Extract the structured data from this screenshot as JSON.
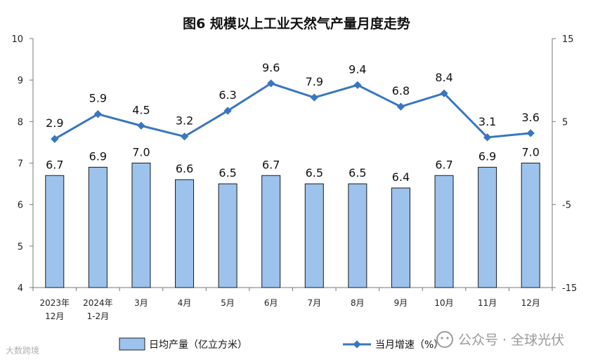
{
  "chart_data": {
    "type": "bar",
    "title": "图6  规模以上工业天然气产量月度走势",
    "categories": [
      [
        "2023年",
        "12月"
      ],
      [
        "2024年",
        "1-2月"
      ],
      [
        "3月"
      ],
      [
        "4月"
      ],
      [
        "5月"
      ],
      [
        "6月"
      ],
      [
        "7月"
      ],
      [
        "8月"
      ],
      [
        "9月"
      ],
      [
        "10月"
      ],
      [
        "11月"
      ],
      [
        "12月"
      ]
    ],
    "series": [
      {
        "name": "日均产量（亿立方米）",
        "type": "bar",
        "axis": "left",
        "values": [
          6.7,
          6.9,
          7.0,
          6.6,
          6.5,
          6.7,
          6.5,
          6.5,
          6.4,
          6.7,
          6.9,
          7.0
        ],
        "labels": [
          "6.7",
          "6.9",
          "7.0",
          "6.6",
          "6.5",
          "6.7",
          "6.5",
          "6.5",
          "6.4",
          "6.7",
          "6.9",
          "7.0"
        ],
        "color": "#9dc3ec"
      },
      {
        "name": "当月增速（%）",
        "type": "line",
        "axis": "right",
        "values": [
          2.9,
          5.9,
          4.5,
          3.2,
          6.3,
          9.6,
          7.9,
          9.4,
          6.8,
          8.4,
          3.1,
          3.6
        ],
        "labels": [
          "2.9",
          "5.9",
          "4.5",
          "3.2",
          "6.3",
          "9.6",
          "7.9",
          "9.4",
          "6.8",
          "8.4",
          "3.1",
          "3.6"
        ],
        "color": "#3a76bf"
      }
    ],
    "y_left": {
      "lim": [
        4,
        10
      ],
      "ticks": [
        "4",
        "5",
        "6",
        "7",
        "8",
        "9",
        "10"
      ]
    },
    "y_right": {
      "lim": [
        -15,
        15
      ],
      "ticks": [
        "-15",
        "-5",
        "5",
        "15"
      ]
    },
    "grid": false,
    "legend": "bottom"
  },
  "watermark": {
    "text": "公众号 · 全球光伏",
    "logo_text": "大数跨境"
  }
}
